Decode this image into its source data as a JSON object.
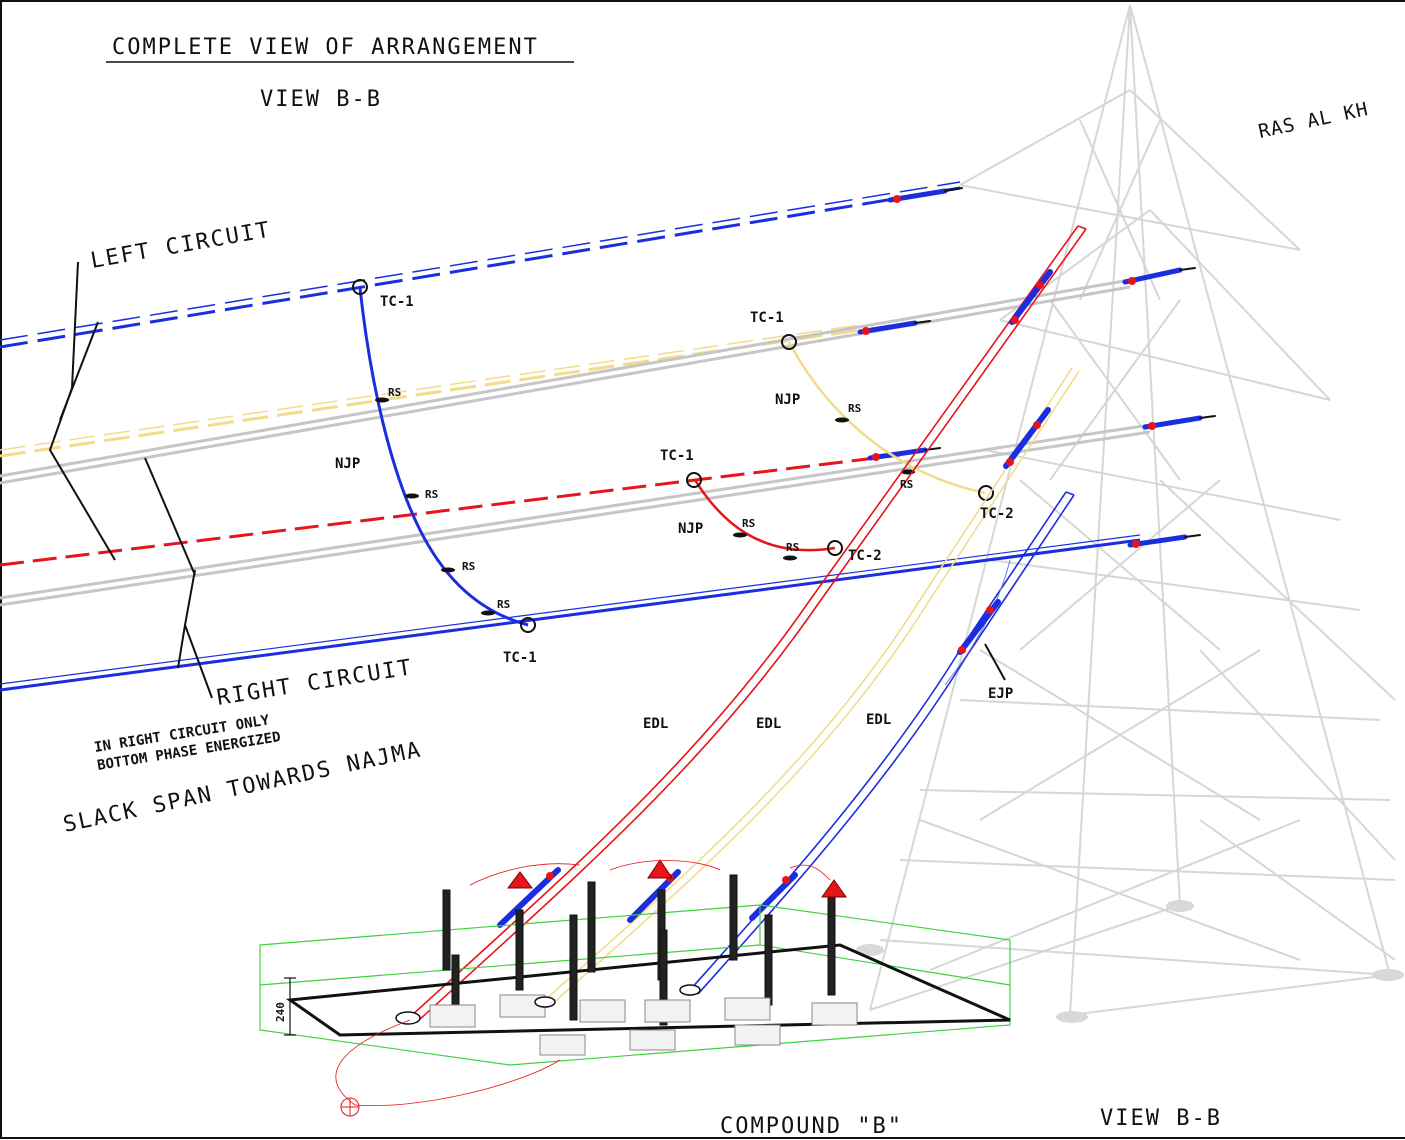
{
  "titles": {
    "main": "COMPLETE VIEW OF ARRANGEMENT",
    "view_top": "VIEW B-B",
    "view_bottom": "VIEW B-B",
    "destination": "RAS AL KH",
    "left_circuit": "LEFT CIRCUIT",
    "right_circuit": "RIGHT CIRCUIT",
    "note_line1": "IN RIGHT CIRCUIT ONLY",
    "note_line2": "BOTTOM PHASE ENERGIZED",
    "slack_span": "SLACK SPAN TOWARDS NAJMA",
    "compound": "COMPOUND \"B\"",
    "dimension": "240"
  },
  "labels": {
    "tc1": "TC-1",
    "tc2": "TC-2",
    "njp": "NJP",
    "rs": "RS",
    "edl": "EDL",
    "ejp": "EJP"
  },
  "colors": {
    "blue": "#1a2ee0",
    "red": "#e8141a",
    "yellow": "#f2dc8a",
    "grey": "#c8c8c8",
    "tower": "#d6d6d6",
    "green": "#3fd23f",
    "black": "#111111"
  }
}
